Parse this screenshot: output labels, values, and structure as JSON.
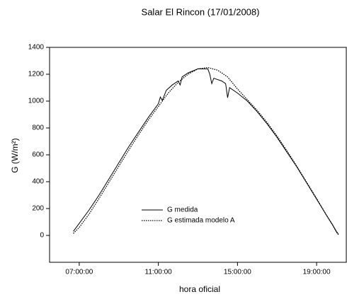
{
  "chart_data": {
    "type": "line",
    "title": "Salar El Rincon (17/01/2008)",
    "xlabel": "hora oficial",
    "ylabel": "G (W/m²)",
    "xlim": [
      5.5,
      20.5
    ],
    "xticks": [
      {
        "value": 7,
        "label": "07:00:00"
      },
      {
        "value": 11,
        "label": "11:00:00"
      },
      {
        "value": 15,
        "label": "15:00:00"
      },
      {
        "value": 19,
        "label": "19:00:00"
      }
    ],
    "ylim": [
      -200,
      1400
    ],
    "yticks": [
      0,
      200,
      400,
      600,
      800,
      1000,
      1200,
      1400
    ],
    "legend": "lower center",
    "series": [
      {
        "name": "G medida",
        "color": "#000000",
        "style": "solid",
        "x": [
          6.7,
          7.0,
          7.5,
          8,
          8.5,
          9,
          9.5,
          10,
          10.5,
          11,
          11.1,
          11.2,
          11.4,
          11.7,
          12.0,
          12.1,
          12.2,
          12.5,
          13,
          13.5,
          13.6,
          13.7,
          13.8,
          14.2,
          14.4,
          14.5,
          14.6,
          15,
          15.5,
          16,
          16.5,
          17,
          17.5,
          18,
          18.5,
          19,
          19.5,
          19.8,
          20.0,
          20.1
        ],
        "values": [
          30,
          90,
          190,
          300,
          420,
          540,
          660,
          770,
          880,
          980,
          1030,
          1005,
          1080,
          1120,
          1150,
          1120,
          1180,
          1210,
          1240,
          1240,
          1200,
          1130,
          1170,
          1150,
          1130,
          1025,
          1100,
          1060,
          1000,
          920,
          830,
          730,
          620,
          510,
          390,
          270,
          150,
          80,
          30,
          10
        ]
      },
      {
        "name": "G estimada modelo A",
        "color": "#000000",
        "style": "dotted",
        "x": [
          6.7,
          7,
          7.5,
          8,
          8.5,
          9,
          9.5,
          10,
          10.5,
          11,
          11.5,
          12,
          12.5,
          13,
          13.5,
          14,
          14.5,
          15,
          15.5,
          16,
          16.5,
          17,
          17.5,
          18,
          18.5,
          19,
          19.5,
          19.8,
          20,
          20.1
        ],
        "values": [
          15,
          60,
          160,
          275,
          395,
          515,
          635,
          750,
          860,
          960,
          1060,
          1140,
          1200,
          1240,
          1250,
          1230,
          1180,
          1090,
          1010,
          930,
          840,
          740,
          630,
          515,
          395,
          275,
          150,
          80,
          25,
          5
        ]
      }
    ]
  }
}
